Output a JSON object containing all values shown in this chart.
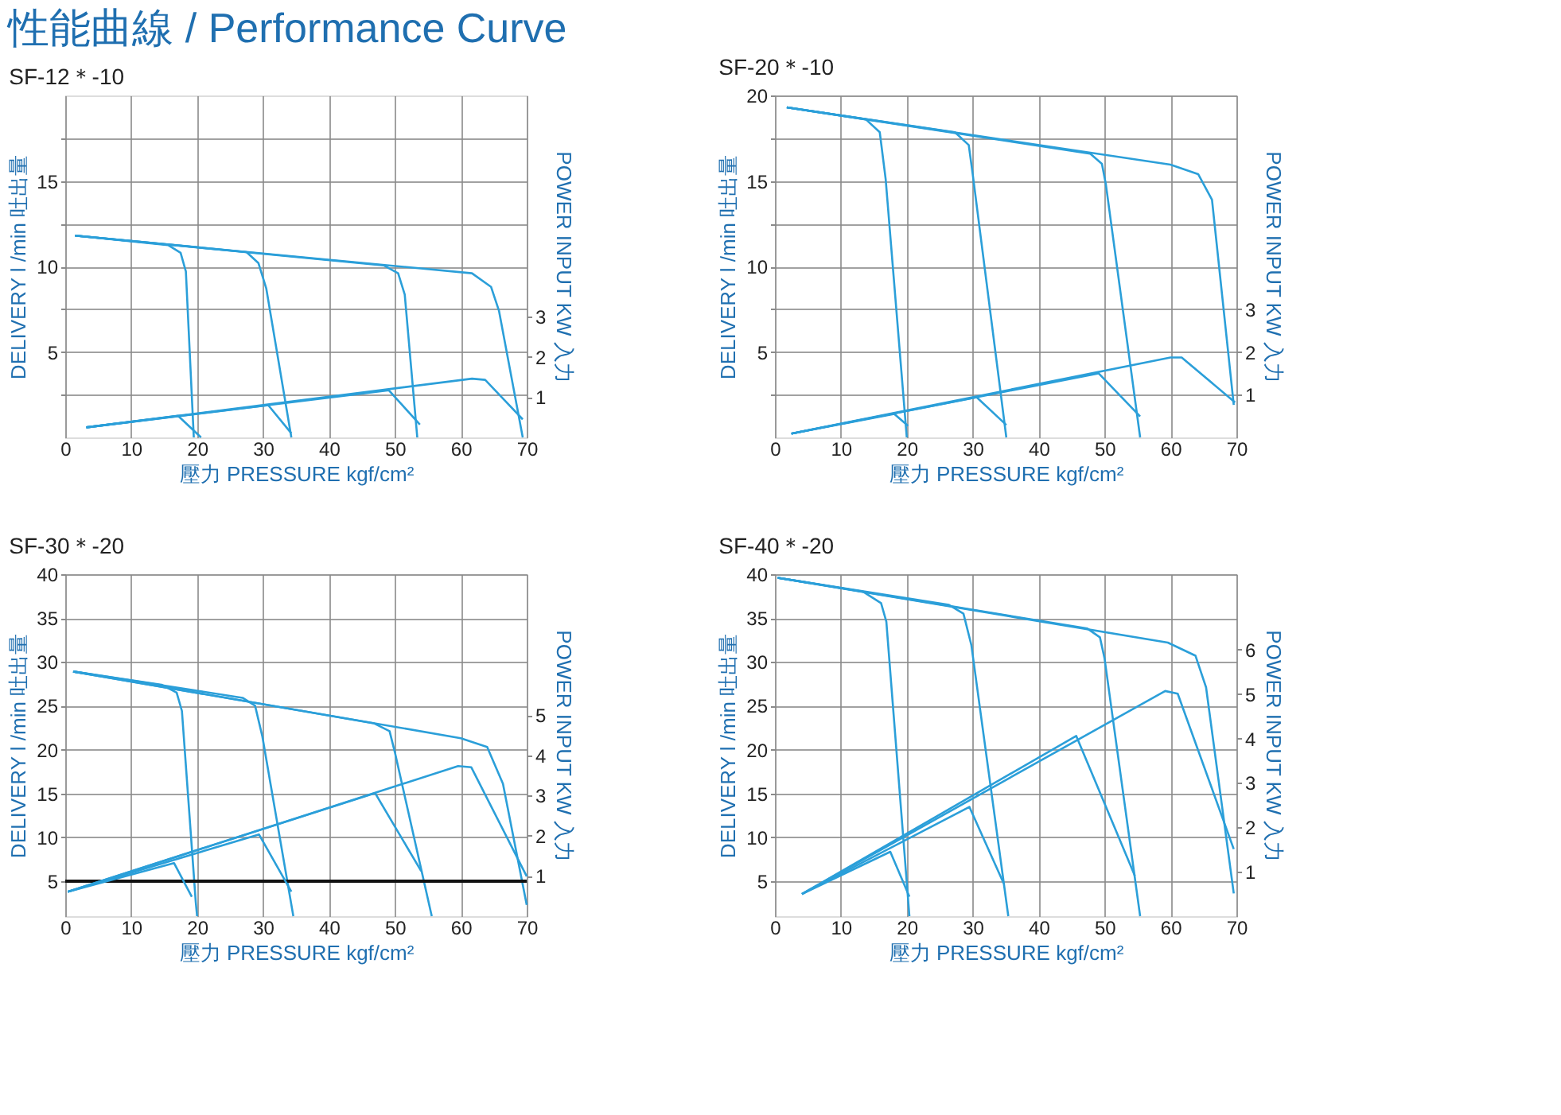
{
  "chart_data": [
    {
      "type": "line",
      "title": "SF-12＊-10",
      "xlabel": "壓力 PRESSURE kgf/cm²",
      "ylabel": "DELIVERY l /min  吐出量",
      "y2label": "POWER INPUT KW  入力",
      "annotations": [
        "性能曲線 / Performance Curve"
      ],
      "grid": true,
      "xlim": [
        0,
        70
      ],
      "xticks": [
        0,
        10,
        20,
        30,
        40,
        50,
        60,
        70
      ],
      "ylim": [
        0,
        20
      ],
      "yticks": [
        {
          "value": 2.5,
          "label": null
        },
        5,
        {
          "value": 7.5,
          "label": null
        },
        10,
        {
          "value": 12.5,
          "label": null
        },
        15,
        {
          "value": 17.5,
          "label": null
        }
      ],
      "y2lim": [
        0,
        8.5
      ],
      "y2ticks": [
        1,
        2,
        3
      ],
      "series": [
        {
          "color": "#2b9fd9",
          "x": [
            1.5,
            15.6,
            17.5,
            18.3,
            19.5
          ],
          "values": [
            11.8,
            11.25,
            10.8,
            9.7,
            0
          ]
        },
        {
          "color": "#2b9fd9",
          "x": [
            1.5,
            27.5,
            29.3,
            30.5,
            34.3
          ],
          "values": [
            11.8,
            10.84,
            10.2,
            8.7,
            0
          ]
        },
        {
          "color": "#2b9fd9",
          "x": [
            1.5,
            48.3,
            50.5,
            51.5,
            53.4
          ],
          "values": [
            11.8,
            10.06,
            9.6,
            8.35,
            0
          ]
        },
        {
          "color": "#2b9fd9",
          "x": [
            1.5,
            61.7,
            64.6,
            65.8,
            69.4
          ],
          "values": [
            11.8,
            9.6,
            8.8,
            7.4,
            0
          ]
        },
        {
          "color": "#2b9fd9",
          "axis": "y2",
          "x": [
            3.2,
            17.1,
            20.6
          ],
          "values": [
            0.25,
            0.54,
            0
          ]
        },
        {
          "color": "#2b9fd9",
          "axis": "y2",
          "x": [
            3.2,
            30.8,
            34.3
          ],
          "values": [
            0.25,
            0.8,
            0.1
          ]
        },
        {
          "color": "#2b9fd9",
          "axis": "y2",
          "x": [
            3.2,
            49.1,
            53.8
          ],
          "values": [
            0.25,
            1.17,
            0.32
          ]
        },
        {
          "color": "#2b9fd9",
          "axis": "y2",
          "x": [
            3.2,
            61.7,
            63.7,
            69.4
          ],
          "values": [
            0.25,
            1.46,
            1.43,
            0.45
          ]
        }
      ]
    },
    {
      "type": "line",
      "title": "SF-20＊-10",
      "xlabel": "壓力 PRESSURE kgf/cm²",
      "ylabel": "DELIVERY l /min  吐出量",
      "y2label": "POWER INPUT KW  入力",
      "grid": true,
      "xlim": [
        0,
        70
      ],
      "xticks": [
        0,
        10,
        20,
        30,
        40,
        50,
        60,
        70
      ],
      "ylim": [
        0,
        20
      ],
      "yticks": [
        {
          "value": 2.5,
          "label": null
        },
        5,
        {
          "value": 7.5,
          "label": null
        },
        10,
        {
          "value": 12.5,
          "label": null
        },
        15,
        {
          "value": 17.5,
          "label": null
        },
        20
      ],
      "y2lim": [
        0,
        8
      ],
      "y2ticks": [
        1,
        2,
        3
      ],
      "series": [
        {
          "color": "#2b9fd9",
          "x": [
            1.8,
            13.8,
            15.9,
            16.8,
            20
          ],
          "values": [
            19.3,
            18.6,
            17.85,
            15.1,
            0
          ]
        },
        {
          "color": "#2b9fd9",
          "x": [
            1.8,
            27.3,
            29.4,
            30,
            35.1
          ],
          "values": [
            19.3,
            17.85,
            17.1,
            15.4,
            0
          ]
        },
        {
          "color": "#2b9fd9",
          "x": [
            1.8,
            47.8,
            49.6,
            50.2,
            55.4
          ],
          "values": [
            19.3,
            16.6,
            16.0,
            14.8,
            0
          ]
        },
        {
          "color": "#2b9fd9",
          "x": [
            1.8,
            60,
            64.2,
            66.3,
            69.6
          ],
          "values": [
            19.3,
            15.95,
            15.4,
            13.9,
            1.9
          ]
        },
        {
          "color": "#2b9fd9",
          "axis": "y2",
          "x": [
            2.5,
            18.1,
            20.2
          ],
          "values": [
            0.09,
            0.55,
            0.27
          ]
        },
        {
          "color": "#2b9fd9",
          "axis": "y2",
          "x": [
            2.5,
            30.6,
            35.1
          ],
          "values": [
            0.09,
            0.94,
            0.29
          ]
        },
        {
          "color": "#2b9fd9",
          "axis": "y2",
          "x": [
            2.5,
            49.1,
            55.4
          ],
          "values": [
            0.09,
            1.5,
            0.49
          ]
        },
        {
          "color": "#2b9fd9",
          "axis": "y2",
          "x": [
            2.5,
            60,
            61.7,
            69.8
          ],
          "values": [
            0.09,
            1.87,
            1.87,
            0.82
          ]
        }
      ]
    },
    {
      "type": "line",
      "title": "SF-30＊-20",
      "xlabel": "壓力 PRESSURE kgf/cm²",
      "ylabel": "DELIVERY l /min  吐出量",
      "y2label": "POWER INPUT KW  入力",
      "grid": true,
      "xlim": [
        0,
        70
      ],
      "xticks": [
        0,
        10,
        20,
        30,
        40,
        50,
        60,
        70
      ],
      "ylim": [
        1,
        40
      ],
      "yticks": [
        5,
        10,
        15,
        20,
        25,
        30,
        35,
        40
      ],
      "y2lim": [
        0,
        8.5
      ],
      "y2ticks": [
        1,
        2,
        3,
        4,
        5
      ],
      "ref_lines": [
        {
          "axis": "y",
          "value": 5,
          "color": "#111111"
        }
      ],
      "series": [
        {
          "color": "#2b9fd9",
          "x": [
            1.2,
            14.6,
            16.9,
            17.7,
            19.8,
            20
          ],
          "values": [
            28.9,
            27.4,
            26.5,
            24.4,
            2.6,
            1
          ]
        },
        {
          "color": "#2b9fd9",
          "x": [
            1.2,
            26.9,
            28.8,
            29.9,
            34.6
          ],
          "values": [
            28.9,
            25.9,
            25.0,
            21.5,
            1
          ]
        },
        {
          "color": "#2b9fd9",
          "x": [
            1.2,
            46.8,
            49.2,
            50,
            55.6
          ],
          "values": [
            28.9,
            23.0,
            22.1,
            19.7,
            1
          ]
        },
        {
          "color": "#2b9fd9",
          "x": [
            1.2,
            60,
            64,
            66.4,
            70
          ],
          "values": [
            28.9,
            21.3,
            20.3,
            16.1,
            2.3
          ]
        },
        {
          "color": "#2b9fd9",
          "axis": "y2",
          "x": [
            0.4,
            16.5,
            19.2
          ],
          "values": [
            0.61,
            1.32,
            0.48
          ]
        },
        {
          "color": "#2b9fd9",
          "axis": "y2",
          "x": [
            0.4,
            29.4,
            34.3
          ],
          "values": [
            0.61,
            2.03,
            0.61
          ]
        },
        {
          "color": "#2b9fd9",
          "axis": "y2",
          "x": [
            0.4,
            47.0,
            54.0
          ],
          "values": [
            0.61,
            3.06,
            1.12
          ]
        },
        {
          "color": "#2b9fd9",
          "axis": "y2",
          "x": [
            0.4,
            59.6,
            61.6,
            70
          ],
          "values": [
            0.61,
            3.73,
            3.7,
            0.99
          ]
        }
      ]
    },
    {
      "type": "line",
      "title": "SF-40＊-20",
      "xlabel": "壓力 PRESSURE kgf/cm²",
      "ylabel": "DELIVERY l /min  吐出量",
      "y2label": "POWER INPUT KW  入力",
      "grid": true,
      "xlim": [
        0,
        70
      ],
      "xticks": [
        0,
        10,
        20,
        30,
        40,
        50,
        60,
        70
      ],
      "ylim": [
        1,
        40
      ],
      "yticks": [
        5,
        10,
        15,
        20,
        25,
        30,
        35,
        40
      ],
      "y2lim": [
        0,
        7.7
      ],
      "y2ticks": [
        1,
        2,
        3,
        4,
        5,
        6
      ],
      "series": [
        {
          "color": "#2b9fd9",
          "x": [
            0.4,
            13.4,
            16.1,
            16.9,
            20.4
          ],
          "values": [
            39.6,
            38.0,
            36.7,
            34.6,
            1
          ]
        },
        {
          "color": "#2b9fd9",
          "x": [
            0.4,
            26.4,
            28.6,
            29.8,
            35.4
          ],
          "values": [
            39.6,
            36.5,
            35.5,
            31.9,
            1
          ]
        },
        {
          "color": "#2b9fd9",
          "x": [
            0.4,
            47.4,
            49.3,
            50,
            55.4
          ],
          "values": [
            39.6,
            33.8,
            32.8,
            30.4,
            1
          ]
        },
        {
          "color": "#2b9fd9",
          "x": [
            0.4,
            59.6,
            63.8,
            65.4,
            69.6
          ],
          "values": [
            39.6,
            32.2,
            30.7,
            27.1,
            3.6
          ]
        },
        {
          "color": "#2b9fd9",
          "axis": "y2",
          "x": [
            4.1,
            17.5,
            20.4
          ],
          "values": [
            0.5,
            1.45,
            0.44
          ]
        },
        {
          "color": "#2b9fd9",
          "axis": "y2",
          "x": [
            4.1,
            29.5,
            34.7
          ],
          "values": [
            0.5,
            2.46,
            0.74
          ]
        },
        {
          "color": "#2b9fd9",
          "axis": "y2",
          "x": [
            4.1,
            45.7,
            54.6
          ],
          "values": [
            0.5,
            4.06,
            0.91
          ]
        },
        {
          "color": "#2b9fd9",
          "axis": "y2",
          "x": [
            4.1,
            59.2,
            61.1,
            69.6
          ],
          "values": [
            0.5,
            5.07,
            5.01,
            1.51
          ]
        }
      ]
    }
  ]
}
